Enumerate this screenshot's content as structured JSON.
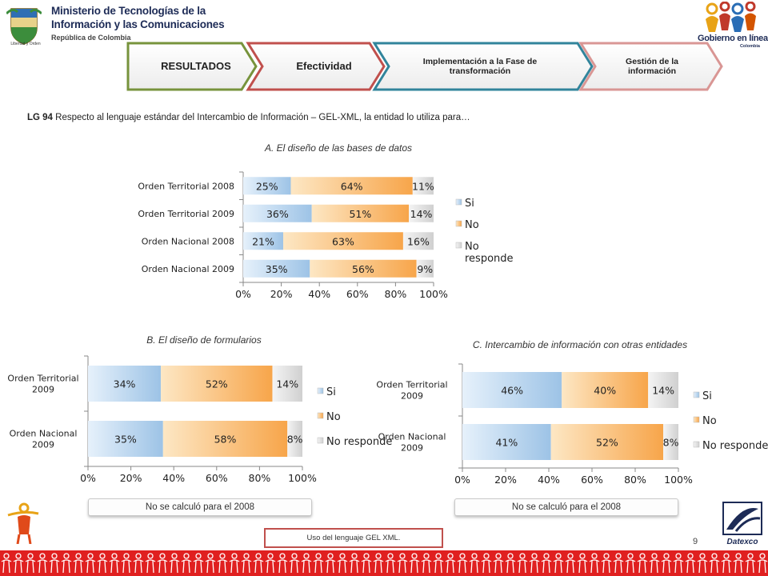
{
  "header": {
    "ministry_line1": "Ministerio de Tecnologías de la",
    "ministry_line2": "Información y las Comunicaciones",
    "ministry_line3": "República de Colombia",
    "crest_motto": "Libertad y Orden",
    "gel_logo_text": "Gobierno en línea",
    "gel_logo_sub": "Colombia"
  },
  "tabs": [
    {
      "label": "RESULTADOS",
      "color": "#77933c"
    },
    {
      "label": "Efectividad",
      "color": "#c0504d"
    },
    {
      "label": "Implementación  a la Fase de transformación",
      "color": "#31849b"
    },
    {
      "label": "Gestión de la información",
      "color": "#d99694"
    }
  ],
  "question": {
    "code": "LG 94",
    "text": " Respecto al lenguaje estándar del Intercambio de Información – GEL-XML, la entidad lo utiliza para…"
  },
  "chart_data": [
    {
      "type": "bar",
      "orientation": "horizontal",
      "stacked": true,
      "title": "A. El diseño de las bases de datos",
      "categories": [
        "Orden Territorial 2008",
        "Orden Territorial 2009",
        "Orden Nacional 2008",
        "Orden Nacional 2009"
      ],
      "series": [
        {
          "name": "Si",
          "values": [
            25,
            36,
            21,
            35
          ],
          "labels": [
            "25%",
            "36%",
            "21%",
            "35%"
          ],
          "color": "#9dc3e6"
        },
        {
          "name": "No",
          "values": [
            64,
            51,
            63,
            56
          ],
          "labels": [
            "64%",
            "51%",
            "63%",
            "56%"
          ],
          "color": "#f7a54a"
        },
        {
          "name": "No responde",
          "values": [
            11,
            14,
            16,
            9
          ],
          "labels": [
            "11%",
            "14%",
            "16%",
            "9%"
          ],
          "color": "#d0d0d0"
        }
      ],
      "xlim": [
        0,
        100
      ],
      "xticks": [
        "0%",
        "20%",
        "40%",
        "60%",
        "80%",
        "100%"
      ],
      "legend": "right",
      "legend_labels": [
        "Si",
        "No",
        "No",
        "responde"
      ]
    },
    {
      "type": "bar",
      "orientation": "horizontal",
      "stacked": true,
      "title": "B. El diseño de formularios",
      "categories": [
        "Orden Territorial 2009",
        "Orden Nacional 2009"
      ],
      "category_lines": [
        [
          "Orden Territorial",
          "2009"
        ],
        [
          "Orden Nacional",
          "2009"
        ]
      ],
      "series": [
        {
          "name": "Si",
          "values": [
            34,
            35
          ],
          "labels": [
            "34%",
            "35%"
          ],
          "color": "#9dc3e6"
        },
        {
          "name": "No",
          "values": [
            52,
            58
          ],
          "labels": [
            "52%",
            "58%"
          ],
          "color": "#f7a54a"
        },
        {
          "name": "No responde",
          "values": [
            14,
            8
          ],
          "labels": [
            "14%",
            "8%"
          ],
          "color": "#d0d0d0"
        }
      ],
      "xlim": [
        0,
        100
      ],
      "xticks": [
        "0%",
        "20%",
        "40%",
        "60%",
        "80%",
        "100%"
      ],
      "legend": "right"
    },
    {
      "type": "bar",
      "orientation": "horizontal",
      "stacked": true,
      "title": "C. Intercambio de información con otras entidades",
      "categories": [
        "Orden Territorial 2009",
        "Orden Nacional 2009"
      ],
      "category_lines": [
        [
          "Orden Territorial",
          "2009"
        ],
        [
          "Orden Nacional",
          "2009"
        ]
      ],
      "series": [
        {
          "name": "Si",
          "values": [
            46,
            41
          ],
          "labels": [
            "46%",
            "41%"
          ],
          "color": "#9dc3e6"
        },
        {
          "name": "No",
          "values": [
            40,
            52
          ],
          "labels": [
            "40%",
            "52%"
          ],
          "color": "#f7a54a"
        },
        {
          "name": "No responde",
          "values": [
            14,
            8
          ],
          "labels": [
            "14%",
            "8%"
          ],
          "color": "#d0d0d0"
        }
      ],
      "xlim": [
        0,
        100
      ],
      "xticks": [
        "0%",
        "20%",
        "40%",
        "60%",
        "80%",
        "100%"
      ],
      "legend": "right"
    }
  ],
  "notes": {
    "chart_b": "No se calculó para el 2008",
    "chart_c": "No se calculó para el 2008"
  },
  "footer": {
    "note": "Uso del lenguaje GEL XML.",
    "page_number": "9",
    "datexco_label": "Datexco",
    "strip_color": "#e02020"
  }
}
